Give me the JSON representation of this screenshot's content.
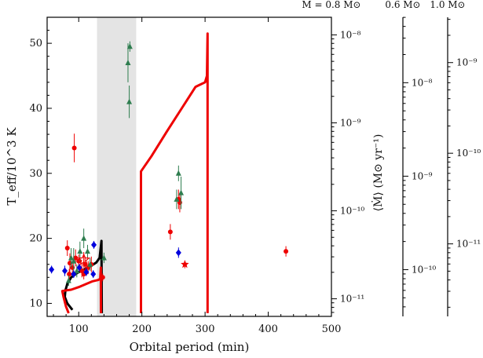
{
  "chart_data": {
    "type": "scatter",
    "xlabel": "Orbital period (min)",
    "ylabel": "T_eff/10^3 K",
    "y2label": "⟨Ṁ⟩ (M⊙ yr⁻¹)",
    "xlim": [
      50,
      500
    ],
    "ylim": [
      8,
      54
    ],
    "x_ticks": [
      100,
      200,
      300,
      400,
      500
    ],
    "y_ticks": [
      10,
      20,
      30,
      40,
      50
    ],
    "mdot_axes": [
      {
        "label": "M = 0.8 M⊙",
        "ticks": [
          "10⁻⁸",
          "10⁻⁹",
          "10⁻¹⁰",
          "10⁻¹¹"
        ],
        "log_range": [
          -11.2,
          -7.8
        ],
        "tick_exps": [
          -8,
          -9,
          -10,
          -11
        ]
      },
      {
        "label": "0.6 M⊙",
        "ticks": [
          "10⁻⁸",
          "10⁻⁹",
          "10⁻¹⁰"
        ],
        "log_range": [
          -10.5,
          -7.3
        ],
        "tick_exps": [
          -8,
          -9,
          -10
        ]
      },
      {
        "label": "1.0 M⊙",
        "ticks": [
          "10⁻⁹",
          "10⁻¹⁰",
          "10⁻¹¹"
        ],
        "log_range": [
          -11.8,
          -8.5
        ],
        "tick_exps": [
          -9,
          -10,
          -11
        ]
      }
    ],
    "period_gap": [
      129,
      191
    ],
    "series": [
      {
        "color": "#ee0000",
        "marker": "circle",
        "points": [
          [
            93,
            33.9,
            2.2
          ],
          [
            82,
            18.5,
            1.2
          ],
          [
            86,
            16.2,
            1.5
          ],
          [
            90,
            15.5,
            1.0
          ],
          [
            95,
            17,
            1.3
          ],
          [
            100,
            16.5,
            1.0
          ],
          [
            105,
            15,
            1.0
          ],
          [
            110,
            16,
            1.2
          ],
          [
            115,
            15.5,
            1.0
          ],
          [
            120,
            16,
            1.2
          ],
          [
            85,
            14.5,
            0.8
          ],
          [
            108,
            14.5,
            0.8
          ],
          [
            245,
            21,
            1.2
          ],
          [
            258,
            26,
            1.5
          ],
          [
            260,
            25.5,
            1.5
          ],
          [
            428,
            18,
            0.8
          ],
          [
            138,
            14,
            0.6
          ]
        ]
      },
      {
        "color": "#2e7d4f",
        "marker": "triangle",
        "points": [
          [
            181,
            49.5,
            0.8
          ],
          [
            178,
            47,
            3.0
          ],
          [
            180,
            41,
            2.5
          ],
          [
            258,
            30,
            1.2
          ],
          [
            262,
            27,
            2.5
          ],
          [
            255,
            26,
            1.5
          ],
          [
            88,
            17,
            1.5
          ],
          [
            92,
            16.5,
            2.0
          ],
          [
            97,
            15,
            1.0
          ],
          [
            102,
            18,
            1.5
          ],
          [
            108,
            20,
            1.5
          ],
          [
            114,
            18,
            1.0
          ],
          [
            118,
            16,
            1.0
          ],
          [
            140,
            17,
            0.8
          ],
          [
            84,
            13.5,
            0.8
          ]
        ]
      },
      {
        "color": "#0000dd",
        "marker": "diamond",
        "points": [
          [
            57,
            15.2,
            0.6
          ],
          [
            78,
            15,
            0.8
          ],
          [
            92,
            14.5,
            0.6
          ],
          [
            101,
            15.5,
            0.6
          ],
          [
            112,
            14.8,
            0.6
          ],
          [
            124,
            19,
            0.6
          ],
          [
            123,
            14.5,
            0.6
          ],
          [
            258,
            17.8,
            0.8
          ]
        ]
      },
      {
        "color": "#ee0000",
        "marker": "open-star",
        "points": [
          [
            108,
            16.7,
            1.2
          ]
        ]
      },
      {
        "color": "#ee0000",
        "marker": "star",
        "points": [
          [
            268,
            16,
            0.6
          ]
        ]
      }
    ],
    "track_black": [
      [
        90,
        9
      ],
      [
        82,
        10
      ],
      [
        78,
        11
      ],
      [
        79,
        12
      ],
      [
        82,
        13
      ],
      [
        88,
        14
      ],
      [
        98,
        14.7
      ],
      [
        110,
        15.3
      ],
      [
        120,
        15.8
      ],
      [
        128,
        16.3
      ],
      [
        133,
        17
      ],
      [
        136,
        19.6
      ],
      [
        136.5,
        8.5
      ]
    ],
    "track_red_low": [
      [
        84,
        8.5
      ],
      [
        80,
        9.5
      ],
      [
        76,
        11
      ],
      [
        74,
        11.9
      ],
      [
        80,
        12
      ],
      [
        88,
        12.1
      ],
      [
        100,
        12.5
      ],
      [
        112,
        13
      ],
      [
        122,
        13.4
      ],
      [
        131,
        13.6
      ],
      [
        134,
        13.8
      ],
      [
        135,
        15.5
      ],
      [
        135.2,
        8.5
      ]
    ],
    "track_red_high": [
      [
        198.5,
        8.5
      ],
      [
        198.5,
        30.3
      ],
      [
        215,
        32.6
      ],
      [
        240,
        36.5
      ],
      [
        265,
        40.3
      ],
      [
        285,
        43.3
      ],
      [
        300,
        44
      ],
      [
        303,
        45
      ],
      [
        304,
        51.5
      ],
      [
        304,
        8.5
      ]
    ]
  }
}
